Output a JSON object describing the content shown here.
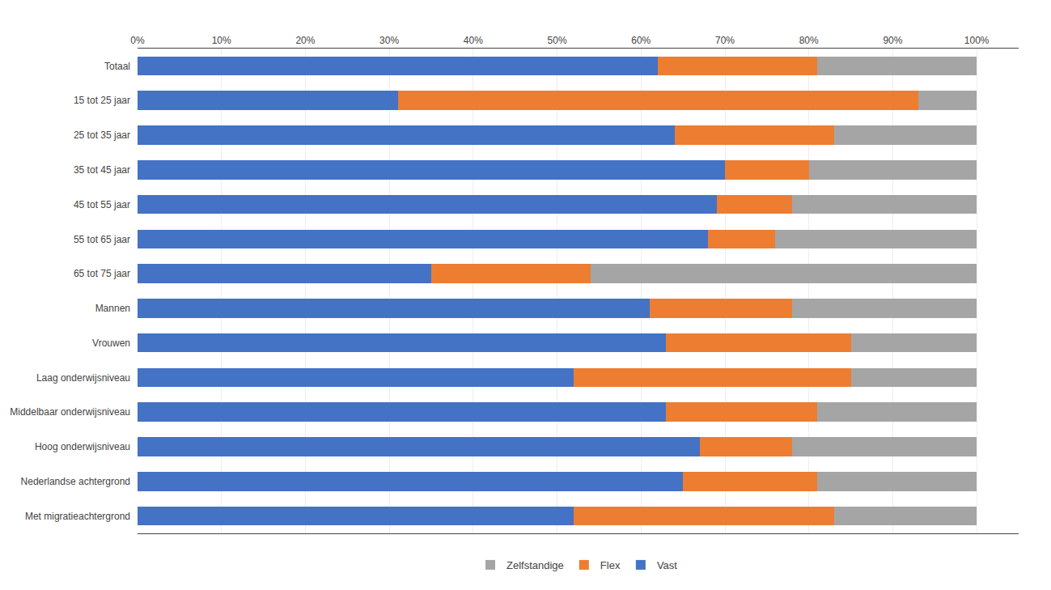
{
  "chart_data": {
    "type": "bar",
    "orientation": "horizontal",
    "stacked": true,
    "categories": [
      "Totaal",
      "15 tot 25 jaar",
      "25 tot 35 jaar",
      "35 tot 45 jaar",
      "45 tot 55 jaar",
      "55 tot 65 jaar",
      "65 tot 75 jaar",
      "Mannen",
      "Vrouwen",
      "Laag onderwijsniveau",
      "Middelbaar onderwijsniveau",
      "Hoog onderwijsniveau",
      "Nederlandse achtergrond",
      "Met migratieachtergrond"
    ],
    "series": [
      {
        "name": "Vast",
        "color": "#4472C4",
        "values": [
          62,
          31,
          64,
          70,
          69,
          68,
          35,
          61,
          63,
          52,
          63,
          67,
          65,
          52
        ]
      },
      {
        "name": "Flex",
        "color": "#ED7D31",
        "values": [
          19,
          62,
          19,
          10,
          9,
          8,
          19,
          17,
          22,
          33,
          18,
          11,
          16,
          31
        ]
      },
      {
        "name": "Zelfstandige",
        "color": "#A5A5A5",
        "values": [
          19,
          7,
          17,
          20,
          22,
          24,
          46,
          22,
          15,
          15,
          19,
          22,
          19,
          17
        ]
      }
    ],
    "xlim": [
      0,
      105
    ],
    "xticks": [
      {
        "value": 0,
        "label": "0%"
      },
      {
        "value": 10,
        "label": "10%"
      },
      {
        "value": 20,
        "label": "20%"
      },
      {
        "value": 30,
        "label": "30%"
      },
      {
        "value": 40,
        "label": "40%"
      },
      {
        "value": 50,
        "label": "50%"
      },
      {
        "value": 60,
        "label": "60%"
      },
      {
        "value": 70,
        "label": "70%"
      },
      {
        "value": 80,
        "label": "80%"
      },
      {
        "value": 90,
        "label": "90%"
      },
      {
        "value": 100,
        "label": "100%"
      }
    ],
    "grid": true,
    "legend": "bottom"
  }
}
